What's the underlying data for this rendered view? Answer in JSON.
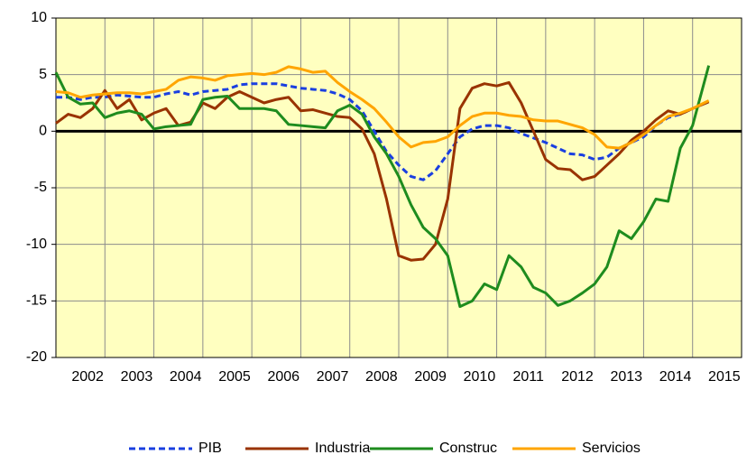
{
  "chart_data": {
    "type": "line",
    "x": [
      2002,
      2002.25,
      2002.5,
      2002.75,
      2003,
      2003.25,
      2003.5,
      2003.75,
      2004,
      2004.25,
      2004.5,
      2004.75,
      2005,
      2005.25,
      2005.5,
      2005.75,
      2006,
      2006.25,
      2006.5,
      2006.75,
      2007,
      2007.25,
      2007.5,
      2007.75,
      2008,
      2008.25,
      2008.5,
      2008.75,
      2009,
      2009.25,
      2009.5,
      2009.75,
      2010,
      2010.25,
      2010.5,
      2010.75,
      2011,
      2011.25,
      2011.5,
      2011.75,
      2012,
      2012.25,
      2012.5,
      2012.75,
      2013,
      2013.25,
      2013.5,
      2013.75,
      2014,
      2014.25,
      2014.5,
      2014.75,
      2015,
      2015.33
    ],
    "series": [
      {
        "name": "PIB",
        "color": "#1a3fe0",
        "dash": "dashed",
        "values": [
          3.0,
          3.0,
          2.8,
          3.0,
          3.0,
          3.2,
          3.1,
          3.0,
          3.0,
          3.3,
          3.5,
          3.2,
          3.5,
          3.6,
          3.7,
          4.1,
          4.2,
          4.2,
          4.2,
          4.0,
          3.8,
          3.7,
          3.6,
          3.3,
          2.8,
          1.8,
          0.0,
          -1.8,
          -3.0,
          -4.0,
          -4.3,
          -3.5,
          -2.0,
          -0.5,
          0.2,
          0.5,
          0.5,
          0.3,
          -0.2,
          -0.6,
          -1.0,
          -1.5,
          -2.0,
          -2.1,
          -2.5,
          -2.3,
          -1.5,
          -1.0,
          -0.5,
          0.5,
          1.2,
          1.5,
          2.0,
          2.6
        ]
      },
      {
        "name": "Industria",
        "color": "#993300",
        "dash": "solid",
        "values": [
          0.7,
          1.5,
          1.2,
          2.0,
          3.6,
          2.0,
          2.8,
          1.0,
          1.6,
          2.0,
          0.5,
          0.8,
          2.5,
          2.0,
          3.0,
          3.5,
          3.0,
          2.5,
          2.8,
          3.0,
          1.8,
          1.9,
          1.6,
          1.3,
          1.2,
          0.2,
          -2.0,
          -6.0,
          -11.0,
          -11.4,
          -11.3,
          -10.0,
          -6.0,
          2.0,
          3.8,
          4.2,
          4.0,
          4.3,
          2.5,
          0.0,
          -2.5,
          -3.3,
          -3.4,
          -4.3,
          -4.0,
          -3.0,
          -2.0,
          -0.8,
          0.0,
          1.0,
          1.8,
          1.5,
          2.0,
          2.6
        ]
      },
      {
        "name": "Construc",
        "color": "#1e8c1e",
        "dash": "solid",
        "values": [
          5.2,
          3.0,
          2.4,
          2.5,
          1.2,
          1.6,
          1.8,
          1.5,
          0.2,
          0.4,
          0.5,
          0.6,
          2.8,
          3.0,
          3.1,
          2.0,
          2.0,
          2.0,
          1.8,
          0.6,
          0.5,
          0.4,
          0.3,
          1.8,
          2.3,
          1.5,
          -0.5,
          -2.0,
          -4.0,
          -6.5,
          -8.5,
          -9.5,
          -11.0,
          -15.5,
          -15.0,
          -13.5,
          -14.0,
          -11.0,
          -12.0,
          -13.8,
          -14.3,
          -15.4,
          -15.0,
          -14.3,
          -13.5,
          -12.0,
          -8.8,
          -9.5,
          -8.0,
          -6.0,
          -6.2,
          -1.5,
          0.5,
          5.8
        ]
      },
      {
        "name": "Servicios",
        "color": "#ffa500",
        "dash": "solid",
        "values": [
          3.5,
          3.4,
          3.0,
          3.2,
          3.3,
          3.4,
          3.4,
          3.3,
          3.5,
          3.7,
          4.5,
          4.8,
          4.7,
          4.5,
          4.9,
          5.0,
          5.1,
          5.0,
          5.2,
          5.7,
          5.5,
          5.2,
          5.3,
          4.3,
          3.5,
          2.8,
          2.0,
          0.8,
          -0.5,
          -1.4,
          -1.0,
          -0.9,
          -0.5,
          0.5,
          1.3,
          1.6,
          1.6,
          1.4,
          1.3,
          1.0,
          0.9,
          0.9,
          0.6,
          0.3,
          -0.3,
          -1.4,
          -1.5,
          -1.0,
          -0.3,
          0.5,
          1.3,
          1.6,
          2.0,
          2.7
        ]
      }
    ],
    "xlim": [
      2002,
      2016
    ],
    "xticks": [
      {
        "value": 2002.5,
        "label": "2002"
      },
      {
        "value": 2003.5,
        "label": "2003"
      },
      {
        "value": 2004.5,
        "label": "2004"
      },
      {
        "value": 2005.5,
        "label": "2005"
      },
      {
        "value": 2006.5,
        "label": "2006"
      },
      {
        "value": 2007.5,
        "label": "2007"
      },
      {
        "value": 2008.5,
        "label": "2008"
      },
      {
        "value": 2009.5,
        "label": "2009"
      },
      {
        "value": 2010.5,
        "label": "2010"
      },
      {
        "value": 2011.5,
        "label": "2011"
      },
      {
        "value": 2012.5,
        "label": "2012"
      },
      {
        "value": 2013.5,
        "label": "2013"
      },
      {
        "value": 2014.5,
        "label": "2014"
      },
      {
        "value": 2015.5,
        "label": "2015"
      }
    ],
    "ylim": [
      -20,
      10
    ],
    "yticks": [
      -20,
      -15,
      -10,
      -5,
      0,
      5,
      10
    ],
    "grid": true,
    "legend": "bottom"
  }
}
